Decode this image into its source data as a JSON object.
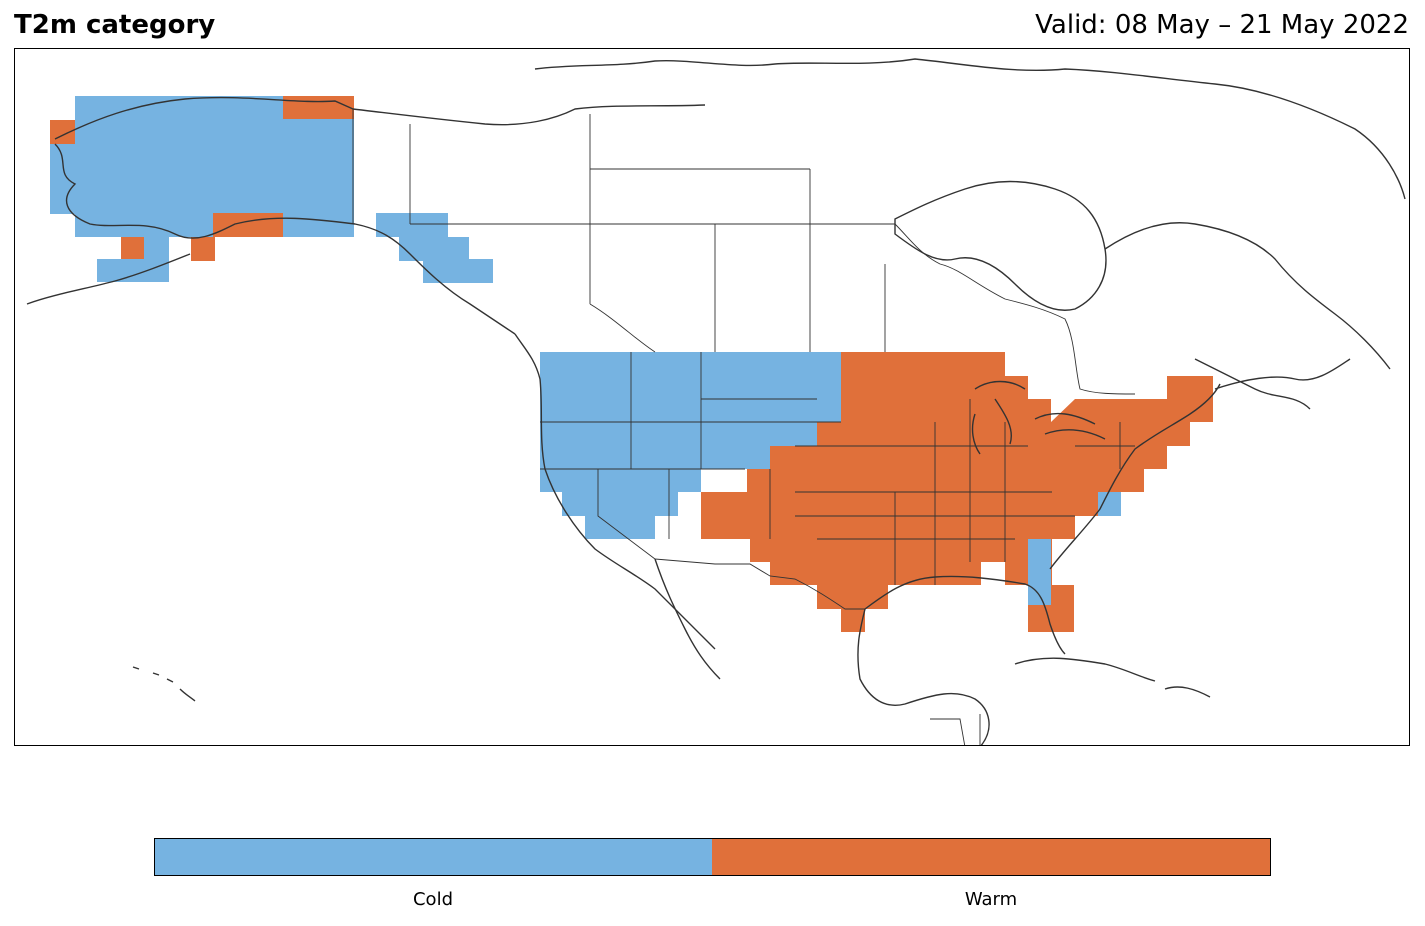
{
  "header": {
    "title": "T2m category",
    "valid": "Valid: 08 May – 21 May 2022"
  },
  "legend": {
    "categories": [
      {
        "label": "Cold",
        "color": "#76b3e1"
      },
      {
        "label": "Warm",
        "color": "#e0703a"
      }
    ]
  },
  "map": {
    "projection": "equirectangular",
    "coastline_color": "#333333",
    "border_color": "#333333",
    "cold_color": "#76b3e1",
    "warm_color": "#e0703a"
  }
}
